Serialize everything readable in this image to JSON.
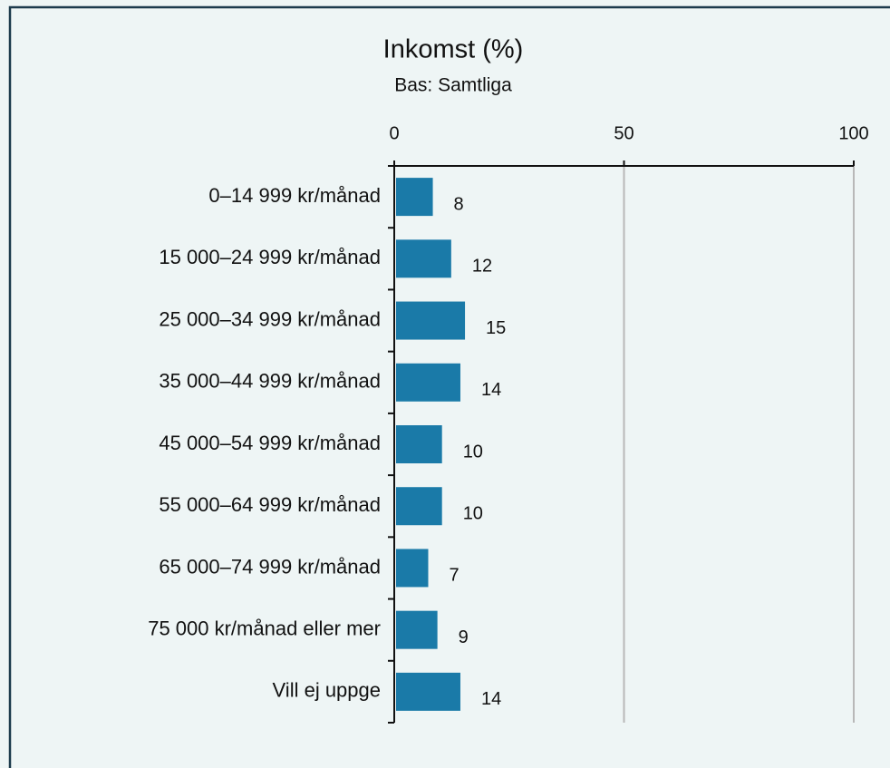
{
  "chart_data": {
    "type": "bar",
    "orientation": "horizontal",
    "title": "Inkomst (%)",
    "subtitle": "Bas: Samtliga",
    "categories": [
      "0–14 999 kr/månad",
      "15 000–24 999 kr/månad",
      "25 000–34 999 kr/månad",
      "35 000–44 999 kr/månad",
      "45 000–54 999 kr/månad",
      "55 000–64 999 kr/månad",
      "65 000–74 999 kr/månad",
      "75 000 kr/månad eller mer",
      "Vill ej uppge"
    ],
    "values": [
      8,
      12,
      15,
      14,
      10,
      10,
      7,
      9,
      14
    ],
    "color": "#1a7aa8",
    "xlim": [
      0,
      100
    ],
    "xticks": [
      0,
      50,
      100
    ],
    "grid": true
  }
}
